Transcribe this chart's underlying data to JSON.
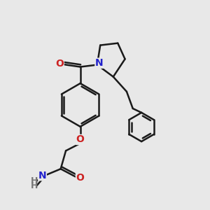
{
  "bg_color": "#e8e8e8",
  "bond_color": "#1a1a1a",
  "bond_width": 1.8,
  "N_color": "#2222cc",
  "O_color": "#cc2222",
  "H_color": "#777777",
  "font_size": 10,
  "xlim": [
    0,
    10
  ],
  "ylim": [
    0,
    10
  ]
}
